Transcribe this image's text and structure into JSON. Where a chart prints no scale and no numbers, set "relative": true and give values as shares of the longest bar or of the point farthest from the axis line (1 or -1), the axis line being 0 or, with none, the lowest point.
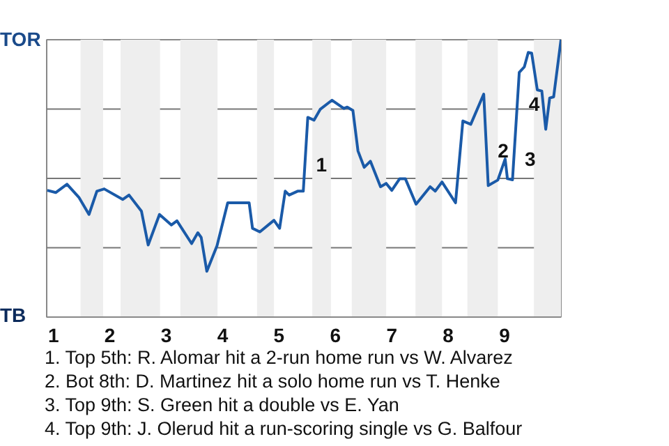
{
  "chart_data": {
    "type": "line",
    "relative": true,
    "x": [
      0.89,
      1.04,
      1.24,
      1.45,
      1.63,
      1.77,
      1.9,
      2.23,
      2.34,
      2.56,
      2.68,
      2.88,
      3.09,
      3.19,
      3.45,
      3.56,
      3.62,
      3.72,
      3.9,
      4.09,
      4.47,
      4.53,
      4.66,
      4.91,
      5.01,
      5.11,
      5.18,
      5.33,
      5.43,
      5.51,
      5.62,
      5.73,
      5.94,
      6.15,
      6.21,
      6.31,
      6.4,
      6.51,
      6.62,
      6.8,
      6.9,
      7.0,
      7.14,
      7.24,
      7.43,
      7.68,
      7.77,
      7.89,
      8.13,
      8.26,
      8.4,
      8.63,
      8.71,
      8.88,
      9.01,
      9.05,
      9.14,
      9.26,
      9.35,
      9.42,
      9.48,
      9.58,
      9.66,
      9.73,
      9.8,
      9.87,
      10.0
    ],
    "series": [
      {
        "color": "#1a5aa8",
        "values": [
          0.457,
          0.449,
          0.479,
          0.432,
          0.37,
          0.454,
          0.462,
          0.424,
          0.44,
          0.382,
          0.26,
          0.37,
          0.332,
          0.347,
          0.265,
          0.304,
          0.287,
          0.165,
          0.257,
          0.412,
          0.412,
          0.32,
          0.307,
          0.349,
          0.32,
          0.454,
          0.44,
          0.454,
          0.454,
          0.72,
          0.71,
          0.749,
          0.782,
          0.752,
          0.757,
          0.745,
          0.599,
          0.54,
          0.562,
          0.47,
          0.482,
          0.457,
          0.499,
          0.499,
          0.407,
          0.47,
          0.454,
          0.487,
          0.412,
          0.707,
          0.695,
          0.804,
          0.474,
          0.494,
          0.57,
          0.499,
          0.495,
          0.882,
          0.902,
          0.954,
          0.952,
          0.819,
          0.815,
          0.677,
          0.79,
          0.794,
          1.0
        ]
      }
    ],
    "xlim": [
      0.88,
      10
    ],
    "xticks": [
      1,
      2,
      3,
      4,
      5,
      6,
      7,
      8,
      9
    ],
    "ref_lines": [
      {
        "axis": "y",
        "value": 0.25,
        "color": "#777777"
      },
      {
        "axis": "y",
        "value": 0.5,
        "color": "#777777"
      },
      {
        "axis": "y",
        "value": 0.75,
        "color": "#777777"
      }
    ],
    "bands": [
      {
        "axis": "x",
        "from": 1.48,
        "to": 1.88,
        "color": "#eeeeee"
      },
      {
        "axis": "x",
        "from": 2.19,
        "to": 2.89,
        "color": "#eeeeee"
      },
      {
        "axis": "x",
        "from": 3.25,
        "to": 3.91,
        "color": "#eeeeee"
      },
      {
        "axis": "x",
        "from": 4.61,
        "to": 4.91,
        "color": "#eeeeee"
      },
      {
        "axis": "x",
        "from": 5.59,
        "to": 5.92,
        "color": "#eeeeee"
      },
      {
        "axis": "x",
        "from": 6.29,
        "to": 6.9,
        "color": "#eeeeee"
      },
      {
        "axis": "x",
        "from": 7.42,
        "to": 7.89,
        "color": "#eeeeee"
      },
      {
        "axis": "x",
        "from": 8.34,
        "to": 8.88,
        "color": "#eeeeee"
      },
      {
        "axis": "x",
        "from": 9.52,
        "to": 10,
        "color": "#eeeeee"
      }
    ],
    "annotations": [
      "TOR",
      "TB",
      {
        "text": "1",
        "x": 5.46,
        "y": 0.55
      },
      {
        "text": "2",
        "x": 8.68,
        "y": 0.6
      },
      {
        "text": "3",
        "x": 9.16,
        "y": 0.57
      },
      {
        "text": "4",
        "x": 9.23,
        "y": 0.77
      },
      "1. Top 5th: R. Alomar hit a 2-run home run vs W. Alvarez",
      "2. Bot 8th: D. Martinez hit a solo home run vs T. Henke",
      "3. Top 9th: S. Green hit a double vs E. Yan",
      "4. Top 9th: J. Olerud hit a run-scoring single vs G. Balfour"
    ]
  }
}
